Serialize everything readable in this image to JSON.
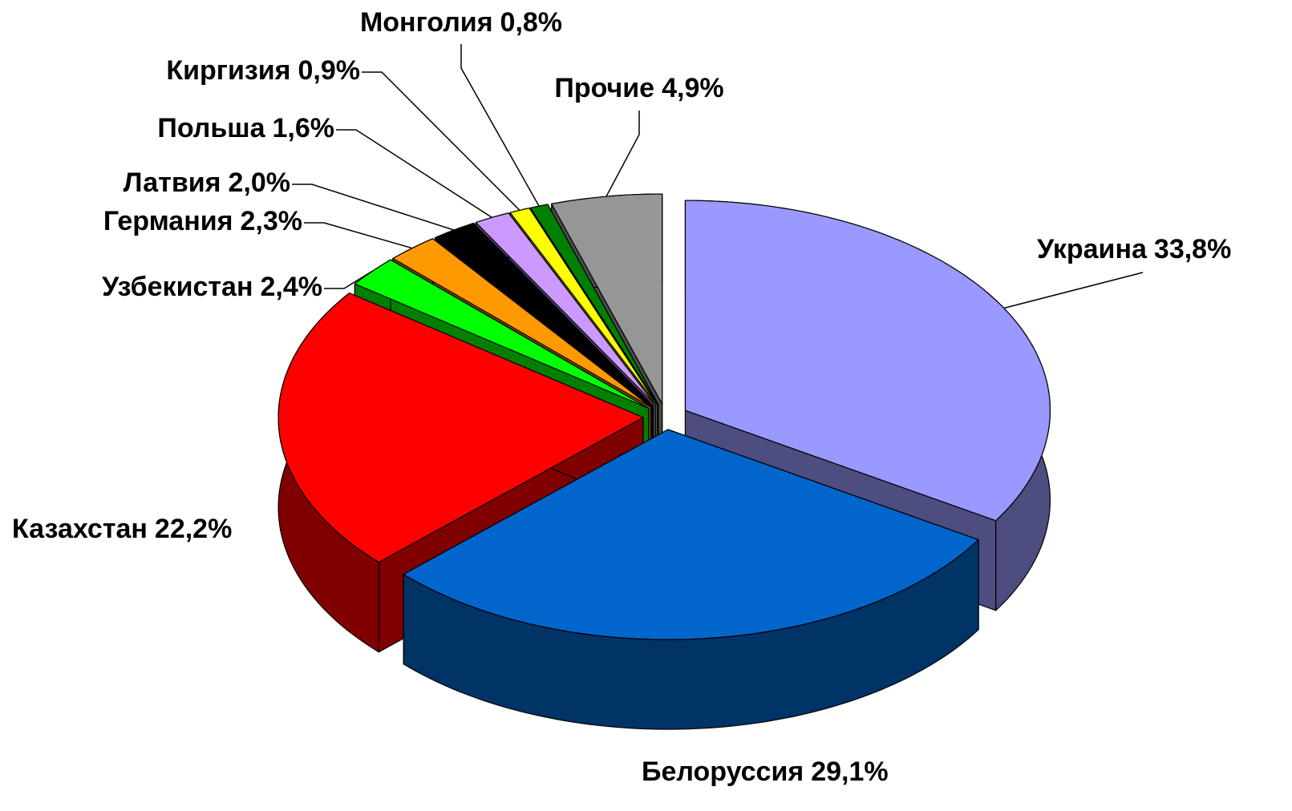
{
  "chart_data": {
    "type": "pie",
    "categories": [
      "Украина",
      "Белоруссия",
      "Казахстан",
      "Узбекистан",
      "Германия",
      "Латвия",
      "Польша",
      "Киргизия",
      "Монголия",
      "Прочие"
    ],
    "values": [
      33.8,
      29.1,
      22.2,
      2.4,
      2.3,
      2.0,
      1.6,
      0.9,
      0.8,
      4.9
    ],
    "value_labels": [
      "33,8%",
      "29,1%",
      "22,2%",
      "2,4%",
      "2,3%",
      "2,0%",
      "1,6%",
      "0,9%",
      "0,8%",
      "4,9%"
    ],
    "colors": [
      "#9999ff",
      "#0066cc",
      "#ff0000",
      "#00ff00",
      "#ff9900",
      "#000000",
      "#cc99ff",
      "#ffff00",
      "#008000",
      "#969696"
    ]
  }
}
